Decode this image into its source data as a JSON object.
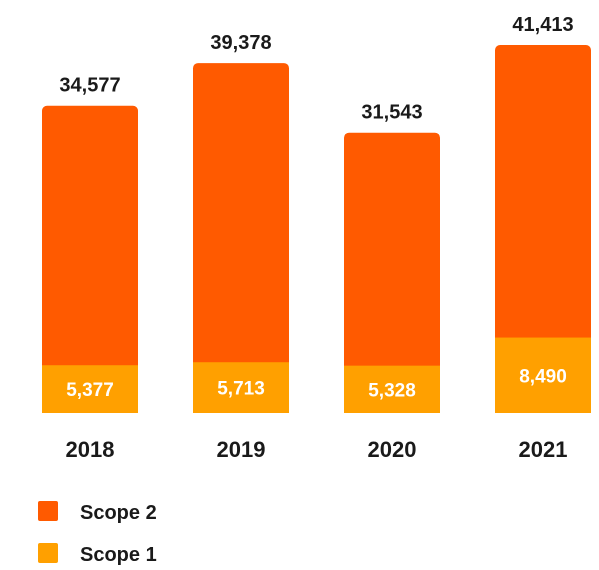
{
  "colors": {
    "scope2": "#FF5A00",
    "scope1": "#FFA000",
    "text_dark": "#1a1a1a",
    "text_light": "#ffffff"
  },
  "chart_data": {
    "type": "bar",
    "stacked": true,
    "categories": [
      "2018",
      "2019",
      "2020",
      "2021"
    ],
    "series": [
      {
        "name": "Scope 1",
        "values": [
          5377,
          5713,
          5328,
          8490
        ]
      },
      {
        "name": "Scope 2",
        "values": [
          29200,
          33665,
          26215,
          32923
        ]
      }
    ],
    "totals": [
      34577,
      39378,
      31543,
      41413
    ],
    "total_labels": [
      "34,577",
      "39,378",
      "31,543",
      "41,413"
    ],
    "scope1_labels": [
      "5,377",
      "5,713",
      "5,328",
      "8,490"
    ],
    "legend": [
      "Scope 2",
      "Scope 1"
    ],
    "legend_position": "bottom-left",
    "grid": false,
    "ylim": [
      0,
      45000
    ]
  }
}
